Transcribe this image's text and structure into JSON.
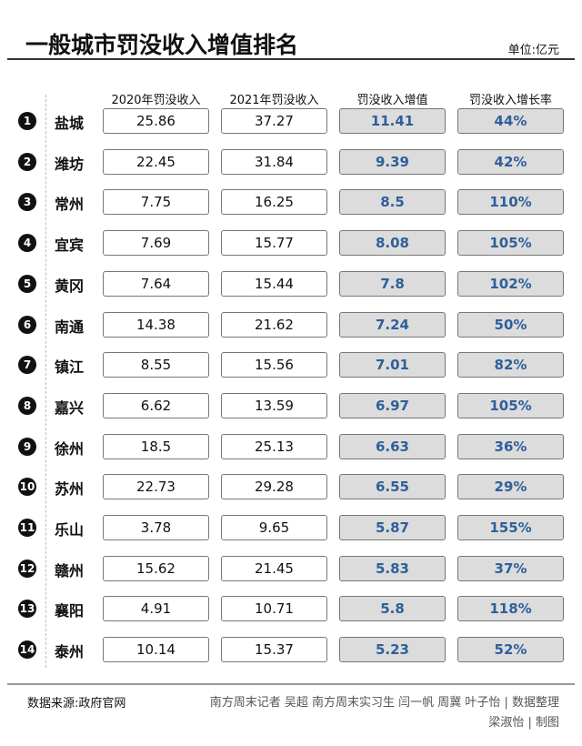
{
  "header": {
    "title": "一般城市罚没收入增值排名",
    "unit": "单位:亿元"
  },
  "chart_data": {
    "type": "table",
    "title": "一般城市罚没收入增值排名",
    "columns": [
      "2020年罚没收入",
      "2021年罚没收入",
      "罚没收入增值",
      "罚没收入增长率"
    ],
    "rows": [
      {
        "rank": "1",
        "city": "盐城",
        "v2020": "25.86",
        "v2021": "37.27",
        "increase": "11.41",
        "rate": "44%"
      },
      {
        "rank": "2",
        "city": "潍坊",
        "v2020": "22.45",
        "v2021": "31.84",
        "increase": "9.39",
        "rate": "42%"
      },
      {
        "rank": "3",
        "city": "常州",
        "v2020": "7.75",
        "v2021": "16.25",
        "increase": "8.5",
        "rate": "110%"
      },
      {
        "rank": "4",
        "city": "宜宾",
        "v2020": "7.69",
        "v2021": "15.77",
        "increase": "8.08",
        "rate": "105%"
      },
      {
        "rank": "5",
        "city": "黄冈",
        "v2020": "7.64",
        "v2021": "15.44",
        "increase": "7.8",
        "rate": "102%"
      },
      {
        "rank": "6",
        "city": "南通",
        "v2020": "14.38",
        "v2021": "21.62",
        "increase": "7.24",
        "rate": "50%"
      },
      {
        "rank": "7",
        "city": "镇江",
        "v2020": "8.55",
        "v2021": "15.56",
        "increase": "7.01",
        "rate": "82%"
      },
      {
        "rank": "8",
        "city": "嘉兴",
        "v2020": "6.62",
        "v2021": "13.59",
        "increase": "6.97",
        "rate": "105%"
      },
      {
        "rank": "9",
        "city": "徐州",
        "v2020": "18.5",
        "v2021": "25.13",
        "increase": "6.63",
        "rate": "36%"
      },
      {
        "rank": "10",
        "city": "苏州",
        "v2020": "22.73",
        "v2021": "29.28",
        "increase": "6.55",
        "rate": "29%"
      },
      {
        "rank": "11",
        "city": "乐山",
        "v2020": "3.78",
        "v2021": "9.65",
        "increase": "5.87",
        "rate": "155%"
      },
      {
        "rank": "12",
        "city": "赣州",
        "v2020": "15.62",
        "v2021": "21.45",
        "increase": "5.83",
        "rate": "37%"
      },
      {
        "rank": "13",
        "city": "襄阳",
        "v2020": "4.91",
        "v2021": "10.71",
        "increase": "5.8",
        "rate": "118%"
      },
      {
        "rank": "14",
        "city": "泰州",
        "v2020": "10.14",
        "v2021": "15.37",
        "increase": "5.23",
        "rate": "52%"
      }
    ],
    "highlight_color": "#2f5f9a"
  },
  "footer": {
    "source": "数据来源:政府官网",
    "credit_line1": "南方周末记者 吴超 南方周末实习生 闫一帆 周冀 叶子怡 | 数据整理",
    "credit_line2": "梁淑怡 | 制图"
  }
}
